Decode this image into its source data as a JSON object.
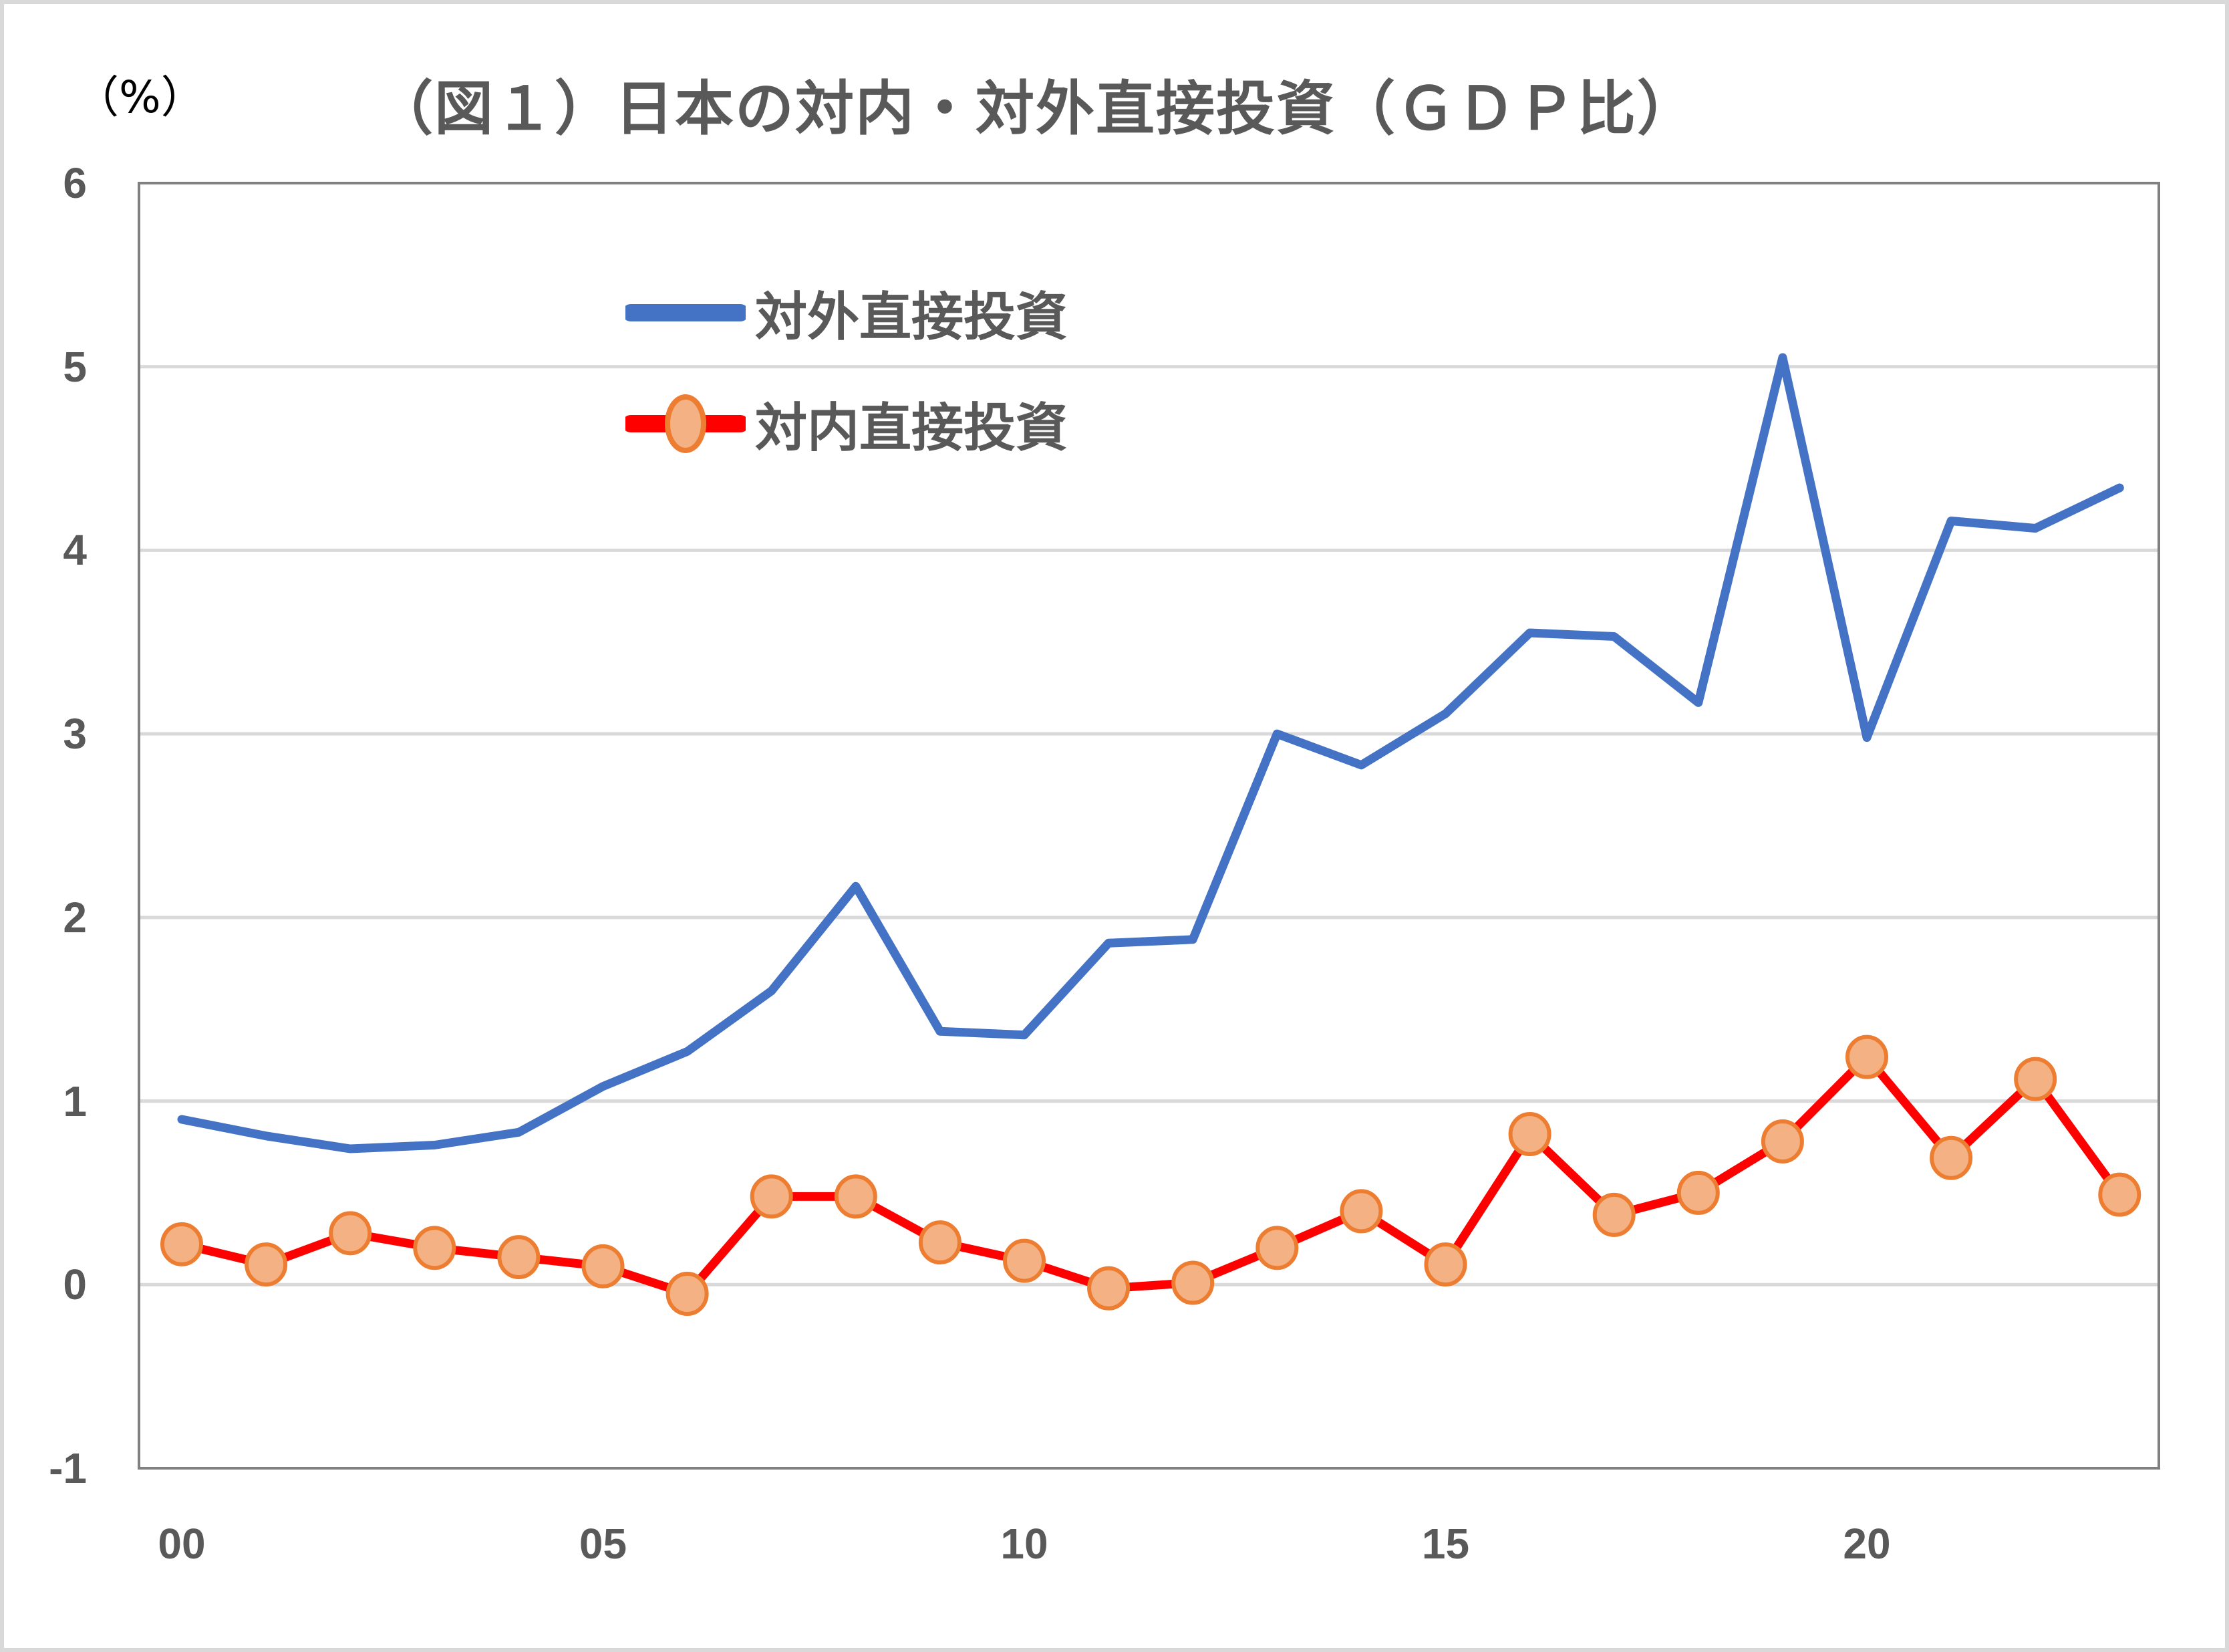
{
  "unit_label": "（%）",
  "title": "（図１）日本の対内・対外直接投資（ＧＤＰ比）",
  "legend": [
    {
      "label": "対外直接投資",
      "color": "#4472c4",
      "marker": "none"
    },
    {
      "label": "対内直接投資",
      "color": "#ff0000",
      "marker": "circle",
      "marker_fill": "#f4b183",
      "marker_stroke": "#ed7d31"
    }
  ],
  "colors": {
    "outward": "#4472c4",
    "inward_line": "#ff0000",
    "inward_marker_fill": "#f4b183",
    "inward_marker_stroke": "#ed7d31",
    "grid": "#d9d9d9",
    "axis": "#808080",
    "text": "#595959"
  },
  "y_ticks": [
    "6",
    "5",
    "4",
    "3",
    "2",
    "1",
    "0",
    "-1"
  ],
  "x_ticks": [
    "00",
    "05",
    "10",
    "15",
    "20"
  ],
  "chart_data": {
    "type": "line",
    "title": "（図１）日本の対内・対外直接投資（ＧＤＰ比）",
    "xlabel": "",
    "ylabel": "（%）",
    "ylim": [
      -1,
      6
    ],
    "y_ticks": [
      -1,
      0,
      1,
      2,
      3,
      4,
      5,
      6
    ],
    "grid": true,
    "legend_position": "upper-left-inside",
    "x": [
      "00",
      "01",
      "02",
      "03",
      "04",
      "05",
      "06",
      "07",
      "08",
      "09",
      "10",
      "11",
      "12",
      "13",
      "14",
      "15",
      "16",
      "17",
      "18",
      "19",
      "20",
      "21",
      "22",
      "23"
    ],
    "x_tick_labels": [
      "00",
      "05",
      "10",
      "15",
      "20"
    ],
    "series": [
      {
        "name": "対外直接投資",
        "color": "#4472c4",
        "marker": "none",
        "values": [
          0.9,
          0.81,
          0.74,
          0.76,
          0.83,
          1.08,
          1.27,
          1.6,
          2.17,
          1.38,
          1.36,
          1.86,
          1.88,
          3.0,
          2.83,
          3.11,
          3.55,
          3.53,
          3.17,
          5.05,
          2.98,
          4.16,
          4.12,
          4.34
        ]
      },
      {
        "name": "対内直接投資",
        "color": "#ff0000",
        "marker": "circle",
        "values": [
          0.22,
          0.11,
          0.28,
          0.2,
          0.15,
          0.1,
          -0.05,
          0.48,
          0.48,
          0.23,
          0.13,
          -0.02,
          0.01,
          0.2,
          0.4,
          0.11,
          0.82,
          0.38,
          0.5,
          0.78,
          1.24,
          0.69,
          1.12,
          0.49
        ]
      }
    ]
  }
}
